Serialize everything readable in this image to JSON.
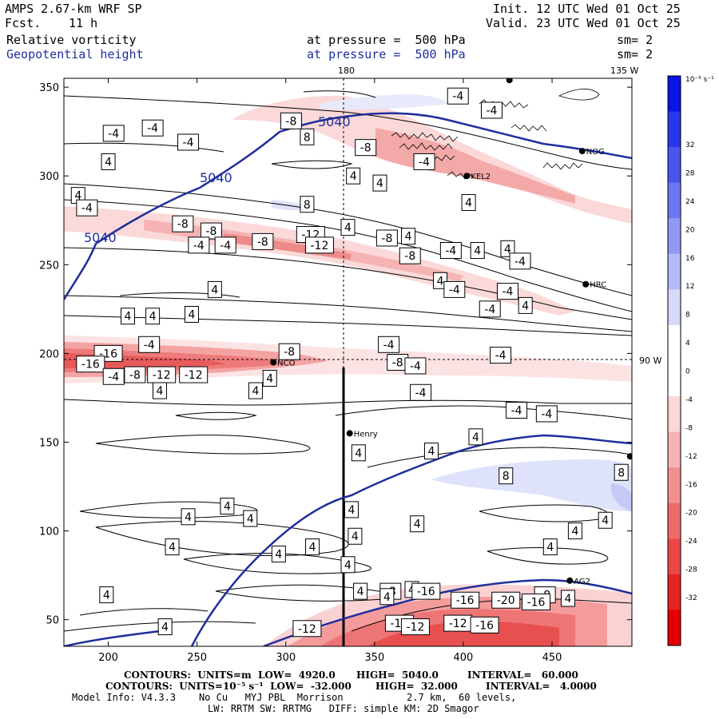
{
  "header": {
    "model": "AMPS 2.67-km WRF SP",
    "fcst_label": "Fcst.",
    "fcst_value": "11 h",
    "init": "Init. 12 UTC Wed 01 Oct 25",
    "valid": "Valid. 23 UTC Wed 01 Oct 25",
    "field1_name": "Relative vorticity",
    "field1_level": "at pressure =  500 hPa",
    "field1_sm": "sm= 2",
    "field2_name": "Geopotential height",
    "field2_level": "at pressure =  500 hPa",
    "field2_sm": "sm= 2"
  },
  "colors": {
    "height_contour": "#1f2e9c",
    "negative": "#e8474a",
    "positive": "#3a46d8"
  },
  "chart_data": {
    "type": "heatmap",
    "title": "Relative vorticity and Geopotential height at 500 hPa",
    "xlim": [
      175,
      495
    ],
    "ylim": [
      35,
      355
    ],
    "x_ticks": [
      "200",
      "250",
      "300",
      "350",
      "400",
      "450"
    ],
    "y_ticks": [
      "50",
      "100",
      "150",
      "200",
      "250",
      "300",
      "350"
    ],
    "map_labels": {
      "meridian_180": "180",
      "meridian_135w": "135 W",
      "parallel_90s": "90 W"
    },
    "stations": [
      {
        "name": "NCO",
        "x": 293,
        "y": 195
      },
      {
        "name": "Henry",
        "x": 336,
        "y": 155
      },
      {
        "name": "NOG",
        "x": 467,
        "y": 314
      },
      {
        "name": "KEL2",
        "x": 402,
        "y": 300
      },
      {
        "name": "HRC",
        "x": 469,
        "y": 239
      },
      {
        "name": "AG2",
        "x": 460,
        "y": 72
      },
      {
        "name": "",
        "x": 426,
        "y": 354
      },
      {
        "name": "",
        "x": 494,
        "y": 142
      }
    ],
    "height_contour_labels": [
      "5040",
      "5040",
      "5040"
    ],
    "vorticity_labels": [
      {
        "v": "-4",
        "x": 397,
        "y": 345
      },
      {
        "v": "-4",
        "x": 416,
        "y": 337
      },
      {
        "v": "-4",
        "x": 203,
        "y": 324
      },
      {
        "v": "-4",
        "x": 225,
        "y": 327
      },
      {
        "v": "-8",
        "x": 303,
        "y": 331
      },
      {
        "v": "8",
        "x": 312,
        "y": 322
      },
      {
        "v": "-4",
        "x": 245,
        "y": 319
      },
      {
        "v": "-8",
        "x": 345,
        "y": 316
      },
      {
        "v": "-4",
        "x": 378,
        "y": 308
      },
      {
        "v": "4",
        "x": 200,
        "y": 308
      },
      {
        "v": "4",
        "x": 338,
        "y": 300
      },
      {
        "v": "4",
        "x": 353,
        "y": 296
      },
      {
        "v": "4",
        "x": 183,
        "y": 289
      },
      {
        "v": "-4",
        "x": 188,
        "y": 282
      },
      {
        "v": "8",
        "x": 312,
        "y": 284
      },
      {
        "v": "4",
        "x": 403,
        "y": 285
      },
      {
        "v": "-8",
        "x": 242,
        "y": 273
      },
      {
        "v": "-8",
        "x": 258,
        "y": 269
      },
      {
        "v": "-4",
        "x": 251,
        "y": 261
      },
      {
        "v": "-4",
        "x": 266,
        "y": 261
      },
      {
        "v": "-8",
        "x": 287,
        "y": 263
      },
      {
        "v": "-12",
        "x": 314,
        "y": 267
      },
      {
        "v": "4",
        "x": 335,
        "y": 271
      },
      {
        "v": "-8",
        "x": 357,
        "y": 265
      },
      {
        "v": "4",
        "x": 369,
        "y": 266
      },
      {
        "v": "-12",
        "x": 319,
        "y": 261
      },
      {
        "v": "-8",
        "x": 370,
        "y": 255
      },
      {
        "v": "-4",
        "x": 393,
        "y": 258
      },
      {
        "v": "4",
        "x": 408,
        "y": 258
      },
      {
        "v": "4",
        "x": 425,
        "y": 259
      },
      {
        "v": "-4",
        "x": 432,
        "y": 252
      },
      {
        "v": "4",
        "x": 260,
        "y": 236
      },
      {
        "v": "4",
        "x": 387,
        "y": 241
      },
      {
        "v": "-4",
        "x": 395,
        "y": 236
      },
      {
        "v": "4",
        "x": 211,
        "y": 221
      },
      {
        "v": "4",
        "x": 225,
        "y": 221
      },
      {
        "v": "4",
        "x": 247,
        "y": 222
      },
      {
        "v": "-4",
        "x": 425,
        "y": 235
      },
      {
        "v": "-4",
        "x": 415,
        "y": 225
      },
      {
        "v": "4",
        "x": 435,
        "y": 227
      },
      {
        "v": "-4",
        "x": 223,
        "y": 205
      },
      {
        "v": "-16",
        "x": 200,
        "y": 200
      },
      {
        "v": "-8",
        "x": 302,
        "y": 201
      },
      {
        "v": "-4",
        "x": 358,
        "y": 205
      },
      {
        "v": "-4",
        "x": 421,
        "y": 199
      },
      {
        "v": "-16",
        "x": 190,
        "y": 194
      },
      {
        "v": "-8",
        "x": 363,
        "y": 195
      },
      {
        "v": "-4",
        "x": 373,
        "y": 193
      },
      {
        "v": "-4",
        "x": 203,
        "y": 187
      },
      {
        "v": "-8",
        "x": 215,
        "y": 188
      },
      {
        "v": "-12",
        "x": 230,
        "y": 188
      },
      {
        "v": "-12",
        "x": 248,
        "y": 188
      },
      {
        "v": "4",
        "x": 291,
        "y": 186
      },
      {
        "v": "-4",
        "x": 376,
        "y": 178
      },
      {
        "v": "4",
        "x": 229,
        "y": 179
      },
      {
        "v": "4",
        "x": 283,
        "y": 179
      },
      {
        "v": "-4",
        "x": 430,
        "y": 168
      },
      {
        "v": "-4",
        "x": 447,
        "y": 166
      },
      {
        "v": "4",
        "x": 407,
        "y": 153
      },
      {
        "v": "4",
        "x": 382,
        "y": 145
      },
      {
        "v": "4",
        "x": 341,
        "y": 144
      },
      {
        "v": "8",
        "x": 424,
        "y": 131
      },
      {
        "v": "8",
        "x": 489,
        "y": 133
      },
      {
        "v": "4",
        "x": 267,
        "y": 114
      },
      {
        "v": "4",
        "x": 245,
        "y": 108
      },
      {
        "v": "4",
        "x": 280,
        "y": 107
      },
      {
        "v": "4",
        "x": 337,
        "y": 112
      },
      {
        "v": "4",
        "x": 374,
        "y": 104
      },
      {
        "v": "4",
        "x": 480,
        "y": 106
      },
      {
        "v": "4",
        "x": 463,
        "y": 100
      },
      {
        "v": "4",
        "x": 335,
        "y": 81
      },
      {
        "v": "4",
        "x": 315,
        "y": 91
      },
      {
        "v": "4",
        "x": 296,
        "y": 87
      },
      {
        "v": "4",
        "x": 236,
        "y": 91
      },
      {
        "v": "4",
        "x": 339,
        "y": 97
      },
      {
        "v": "4",
        "x": 449,
        "y": 91
      },
      {
        "v": "4",
        "x": 342,
        "y": 66
      },
      {
        "v": "4",
        "x": 371,
        "y": 67
      },
      {
        "v": "4",
        "x": 459,
        "y": 62
      },
      {
        "v": "-8",
        "x": 446,
        "y": 64
      },
      {
        "v": "-16",
        "x": 401,
        "y": 61
      },
      {
        "v": "-20",
        "x": 424,
        "y": 61
      },
      {
        "v": "-16",
        "x": 441,
        "y": 60
      },
      {
        "v": "4",
        "x": 199,
        "y": 64
      },
      {
        "v": "-16",
        "x": 379,
        "y": 66
      },
      {
        "v": "-8",
        "x": 359,
        "y": 66
      },
      {
        "v": "4",
        "x": 357,
        "y": 63
      },
      {
        "v": "-16",
        "x": 364,
        "y": 48
      },
      {
        "v": "-12",
        "x": 373,
        "y": 46
      },
      {
        "v": "-12",
        "x": 397,
        "y": 48
      },
      {
        "v": "-16",
        "x": 412,
        "y": 47
      },
      {
        "v": "-12",
        "x": 312,
        "y": 45
      },
      {
        "v": "4",
        "x": 232,
        "y": 46
      }
    ],
    "colorbar": {
      "unit": "10⁻⁵ s⁻¹",
      "ticks": [
        "32",
        "28",
        "24",
        "20",
        "16",
        "12",
        "8",
        "4",
        "0",
        "-4",
        "-8",
        "-12",
        "-16",
        "-20",
        "-24",
        "-28",
        "-32"
      ]
    }
  },
  "footer": {
    "line1_a": "CONTOURS:  UNITS=m  LOW=  4920.0",
    "line1_b": "HIGH=  5040.0",
    "line1_c": "INTERVAL=   60.000",
    "line2_a": "CONTOURS:  UNITS=10⁻⁵ s⁻¹  LOW=  -32.000",
    "line2_b": "HIGH=  32.000",
    "line2_c": "INTERVAL=   4.0000",
    "line3": "Model Info: V4.3.3    No Cu   MYJ PBL  Morrison           2.7 km,  60 levels,",
    "line4": "LW: RRTM SW: RRTMG   DIFF: simple KM: 2D Smagor"
  }
}
